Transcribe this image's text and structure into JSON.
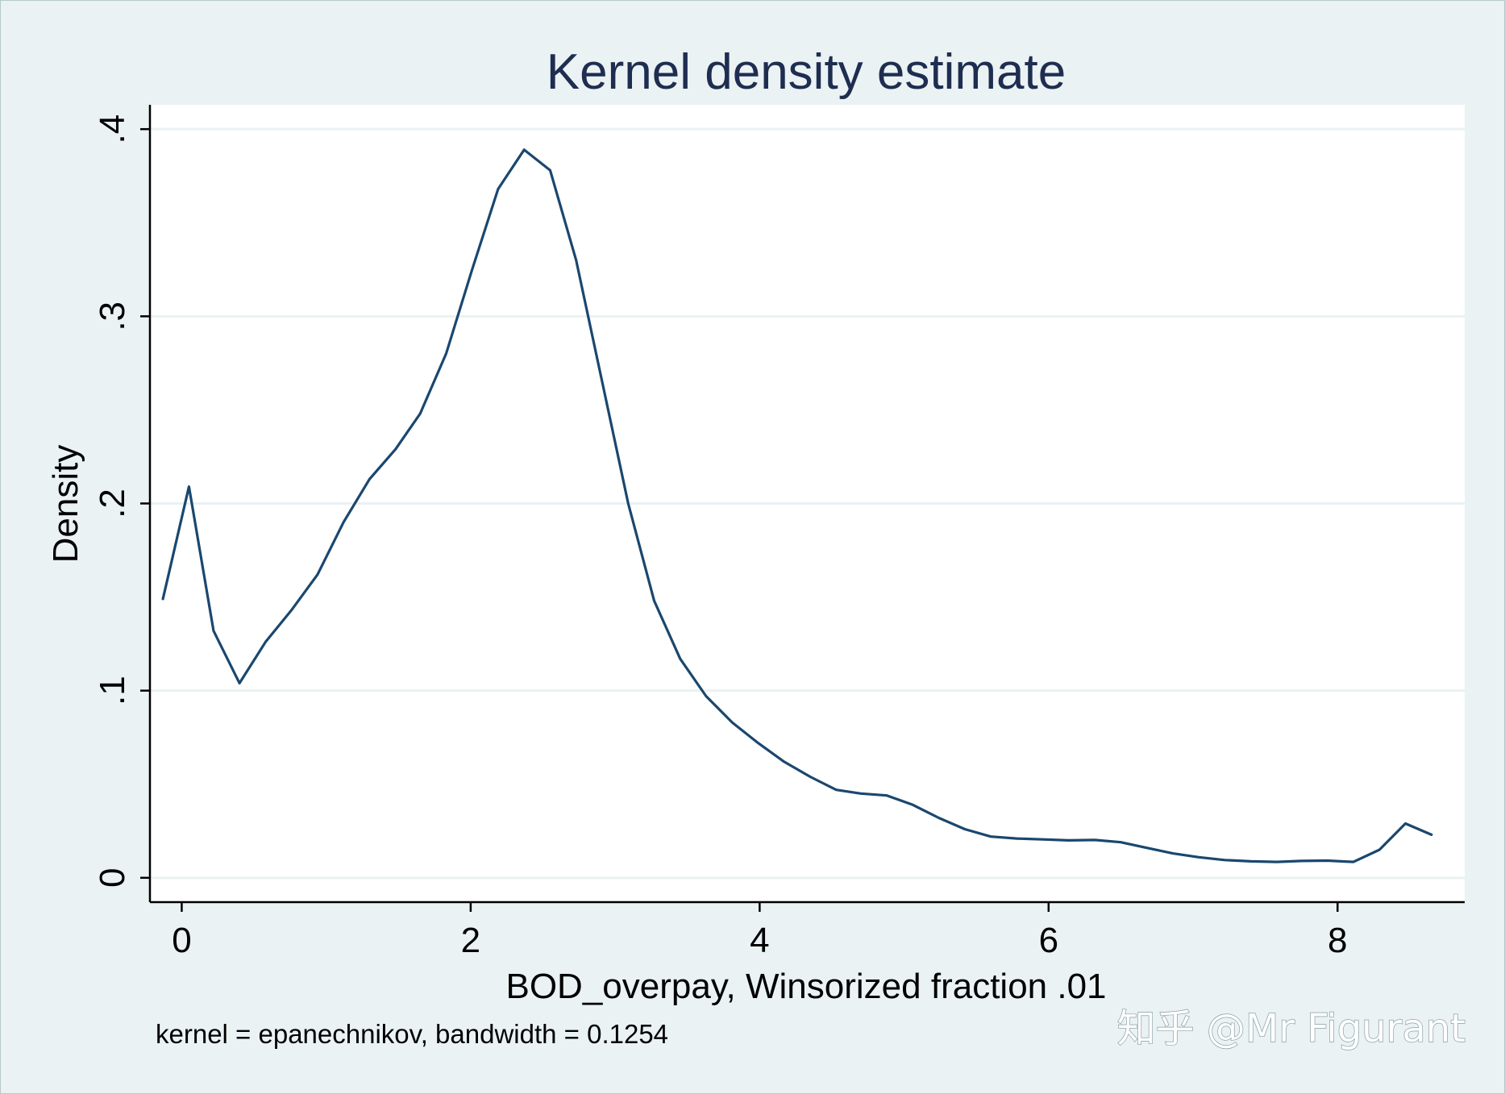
{
  "chart_data": {
    "type": "line",
    "title": "Kernel density estimate",
    "xlabel": "BOD_overpay, Winsorized fraction .01",
    "ylabel": "Density",
    "note": "kernel = epanechnikov, bandwidth = 0.1254",
    "watermark": "知乎 @Mr Figurant",
    "xlim": [
      -0.22,
      8.88
    ],
    "ylim": [
      -0.013,
      0.413
    ],
    "x_ticks": [
      0,
      2,
      4,
      6,
      8
    ],
    "x_tick_labels": [
      "0",
      "2",
      "4",
      "6",
      "8"
    ],
    "y_ticks": [
      0,
      0.1,
      0.2,
      0.3,
      0.4
    ],
    "y_tick_labels": [
      "0",
      ".1",
      ".2",
      ".3",
      ".4"
    ],
    "grid": "horizontal",
    "series": [
      {
        "x": [
          -0.13,
          0.05,
          0.22,
          0.4,
          0.58,
          0.76,
          0.94,
          1.12,
          1.3,
          1.48,
          1.65,
          1.83,
          2.01,
          2.19,
          2.37,
          2.55,
          2.73,
          2.91,
          3.09,
          3.27,
          3.45,
          3.63,
          3.81,
          3.99,
          4.17,
          4.35,
          4.53,
          4.7,
          4.88,
          5.06,
          5.24,
          5.42,
          5.6,
          5.78,
          5.96,
          6.14,
          6.32,
          6.5,
          6.68,
          6.86,
          7.04,
          7.22,
          7.4,
          7.58,
          7.75,
          7.93,
          8.11,
          8.29,
          8.47,
          8.65
        ],
        "values": [
          0.149,
          0.209,
          0.132,
          0.104,
          0.126,
          0.143,
          0.162,
          0.19,
          0.213,
          0.229,
          0.248,
          0.28,
          0.325,
          0.368,
          0.389,
          0.378,
          0.33,
          0.265,
          0.2,
          0.148,
          0.117,
          0.097,
          0.083,
          0.072,
          0.062,
          0.054,
          0.047,
          0.045,
          0.044,
          0.039,
          0.032,
          0.026,
          0.022,
          0.021,
          0.0205,
          0.02,
          0.0202,
          0.019,
          0.016,
          0.013,
          0.011,
          0.0095,
          0.0088,
          0.0085,
          0.009,
          0.0092,
          0.0085,
          0.015,
          0.029,
          0.023
        ]
      }
    ],
    "colors": {
      "background": "#eaf2f3",
      "plot_background": "#ffffff",
      "grid": "#eaf2f3",
      "line": "#1a476f",
      "title": "#1e2d50",
      "text": "#000000",
      "watermark": "#ffffff"
    }
  }
}
